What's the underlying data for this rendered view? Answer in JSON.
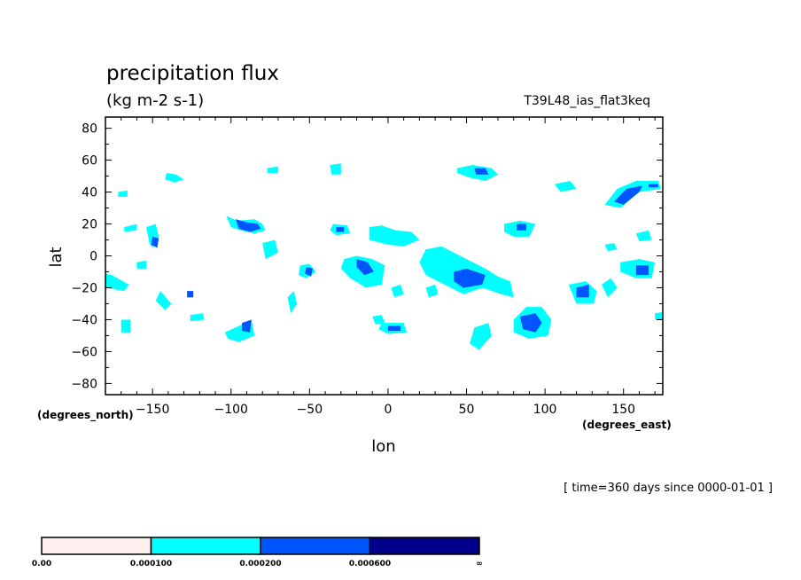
{
  "chart_data": {
    "type": "heatmap",
    "title": "precipitation flux",
    "subtitle": "(kg m-2 s-1)",
    "run_name": "T39L48_ias_flat3keq",
    "xlabel": "lon",
    "ylabel": "lat",
    "x_units": "(degrees_east)",
    "y_units": "(degrees_north)",
    "time_label": "[ time=360 days since 0000-01-01 ]",
    "xlim": [
      -180,
      175
    ],
    "ylim": [
      -87,
      87
    ],
    "x_ticks": [
      -150,
      -100,
      -50,
      0,
      50,
      100,
      150
    ],
    "y_ticks": [
      80,
      60,
      40,
      20,
      0,
      -20,
      -40,
      -60,
      -80
    ],
    "grid": false,
    "colorbar": {
      "placement": "bottom",
      "levels": [
        "0.00",
        "0.000100",
        "0.000200",
        "0.000600",
        "∞"
      ],
      "colors": [
        "#fff0f0",
        "#00ffff",
        "#0055ff",
        "#00008b"
      ]
    },
    "regions": [
      {
        "level": 1,
        "points": [
          [
            -176,
            -12
          ],
          [
            -165,
            -18
          ],
          [
            -168,
            -22
          ],
          [
            -180,
            -20
          ],
          [
            -180,
            -11
          ]
        ]
      },
      {
        "level": 1,
        "points": [
          [
            -154,
            18
          ],
          [
            -148,
            20
          ],
          [
            -146,
            12
          ],
          [
            -150,
            5
          ],
          [
            -152,
            8
          ]
        ]
      },
      {
        "level": 1,
        "points": [
          [
            -145,
            -22
          ],
          [
            -138,
            -30
          ],
          [
            -142,
            -34
          ],
          [
            -148,
            -28
          ]
        ]
      },
      {
        "level": 1,
        "points": [
          [
            -141,
            52
          ],
          [
            -135,
            51
          ],
          [
            -130,
            48
          ],
          [
            -136,
            46
          ],
          [
            -142,
            48
          ]
        ]
      },
      {
        "level": 1,
        "points": [
          [
            -103,
            25
          ],
          [
            -96,
            22
          ],
          [
            -85,
            23
          ],
          [
            -80,
            20
          ],
          [
            -78,
            16
          ],
          [
            -85,
            14
          ],
          [
            -94,
            16
          ],
          [
            -100,
            18
          ]
        ]
      },
      {
        "level": 1,
        "points": [
          [
            -104,
            -48
          ],
          [
            -95,
            -44
          ],
          [
            -87,
            -40
          ],
          [
            -85,
            -50
          ],
          [
            -95,
            -54
          ],
          [
            -102,
            -52
          ]
        ]
      },
      {
        "level": 1,
        "points": [
          [
            -56,
            -6
          ],
          [
            -50,
            -5
          ],
          [
            -46,
            -10
          ],
          [
            -52,
            -14
          ],
          [
            -57,
            -12
          ]
        ]
      },
      {
        "level": 1,
        "points": [
          [
            -35,
            20
          ],
          [
            -26,
            19
          ],
          [
            -24,
            14
          ],
          [
            -33,
            13
          ],
          [
            -37,
            16
          ]
        ]
      },
      {
        "level": 1,
        "points": [
          [
            -28,
            -2
          ],
          [
            -20,
            0
          ],
          [
            -10,
            -2
          ],
          [
            -2,
            -6
          ],
          [
            -4,
            -18
          ],
          [
            -14,
            -20
          ],
          [
            -24,
            -14
          ],
          [
            -30,
            -8
          ]
        ]
      },
      {
        "level": 1,
        "points": [
          [
            -12,
            18
          ],
          [
            -4,
            19
          ],
          [
            5,
            16
          ],
          [
            15,
            15
          ],
          [
            20,
            10
          ],
          [
            10,
            6
          ],
          [
            0,
            7
          ],
          [
            -12,
            10
          ]
        ]
      },
      {
        "level": 1,
        "points": [
          [
            -4,
            -42
          ],
          [
            10,
            -42
          ],
          [
            12,
            -48
          ],
          [
            0,
            -49
          ],
          [
            -6,
            -46
          ]
        ]
      },
      {
        "level": 1,
        "points": [
          [
            24,
            4
          ],
          [
            34,
            6
          ],
          [
            42,
            2
          ],
          [
            50,
            -2
          ],
          [
            62,
            -8
          ],
          [
            70,
            -13
          ],
          [
            78,
            -16
          ],
          [
            80,
            -26
          ],
          [
            72,
            -24
          ],
          [
            60,
            -20
          ],
          [
            48,
            -24
          ],
          [
            36,
            -18
          ],
          [
            24,
            -12
          ],
          [
            20,
            -4
          ]
        ]
      },
      {
        "level": 1,
        "points": [
          [
            44,
            55
          ],
          [
            54,
            57
          ],
          [
            66,
            55
          ],
          [
            70,
            51
          ],
          [
            62,
            47
          ],
          [
            52,
            49
          ],
          [
            44,
            52
          ]
        ]
      },
      {
        "level": 1,
        "points": [
          [
            55,
            -45
          ],
          [
            64,
            -42
          ],
          [
            66,
            -50
          ],
          [
            58,
            -59
          ],
          [
            52,
            -55
          ]
        ]
      },
      {
        "level": 1,
        "points": [
          [
            74,
            20
          ],
          [
            84,
            22
          ],
          [
            94,
            20
          ],
          [
            90,
            12
          ],
          [
            80,
            12
          ],
          [
            74,
            15
          ]
        ]
      },
      {
        "level": 1,
        "points": [
          [
            80,
            -40
          ],
          [
            88,
            -32
          ],
          [
            98,
            -32
          ],
          [
            104,
            -40
          ],
          [
            102,
            -50
          ],
          [
            90,
            -52
          ],
          [
            80,
            -48
          ]
        ]
      },
      {
        "level": 1,
        "points": [
          [
            115,
            -18
          ],
          [
            126,
            -16
          ],
          [
            133,
            -22
          ],
          [
            131,
            -30
          ],
          [
            120,
            -30
          ]
        ]
      },
      {
        "level": 1,
        "points": [
          [
            138,
            32
          ],
          [
            146,
            42
          ],
          [
            158,
            47
          ],
          [
            172,
            47
          ],
          [
            174,
            42
          ],
          [
            160,
            40
          ],
          [
            148,
            30
          ]
        ]
      },
      {
        "level": 1,
        "points": [
          [
            148,
            -4
          ],
          [
            160,
            -2
          ],
          [
            170,
            -4
          ],
          [
            168,
            -14
          ],
          [
            158,
            -14
          ],
          [
            148,
            -10
          ]
        ]
      },
      {
        "level": 1,
        "points": [
          [
            106,
            45
          ],
          [
            116,
            47
          ],
          [
            120,
            42
          ],
          [
            110,
            40
          ]
        ]
      },
      {
        "level": 1,
        "points": [
          [
            -170,
            -40
          ],
          [
            -164,
            -40
          ],
          [
            -164,
            -48
          ],
          [
            -170,
            -48
          ]
        ]
      },
      {
        "level": 1,
        "points": [
          [
            -126,
            -37
          ],
          [
            -118,
            -36
          ],
          [
            -117,
            -40
          ],
          [
            -126,
            -41
          ]
        ]
      },
      {
        "level": 1,
        "points": [
          [
            -37,
            57
          ],
          [
            -30,
            58
          ],
          [
            -30,
            51
          ],
          [
            -36,
            51
          ]
        ]
      },
      {
        "level": 1,
        "points": [
          [
            -77,
            55
          ],
          [
            -70,
            56
          ],
          [
            -70,
            52
          ],
          [
            -77,
            52
          ]
        ]
      },
      {
        "level": 1,
        "points": [
          [
            -172,
            40
          ],
          [
            -166,
            41
          ],
          [
            -166,
            37
          ],
          [
            -172,
            37
          ]
        ]
      },
      {
        "level": 1,
        "points": [
          [
            -160,
            -4
          ],
          [
            -154,
            -3
          ],
          [
            -154,
            -8
          ],
          [
            -160,
            -8
          ]
        ]
      },
      {
        "level": 1,
        "points": [
          [
            -80,
            8
          ],
          [
            -72,
            10
          ],
          [
            -70,
            2
          ],
          [
            -78,
            -2
          ]
        ]
      },
      {
        "level": 1,
        "points": [
          [
            -64,
            -26
          ],
          [
            -60,
            -22
          ],
          [
            -58,
            -30
          ],
          [
            -62,
            -36
          ]
        ]
      },
      {
        "level": 1,
        "points": [
          [
            136,
            -18
          ],
          [
            142,
            -14
          ],
          [
            146,
            -20
          ],
          [
            140,
            -26
          ]
        ]
      },
      {
        "level": 1,
        "points": [
          [
            158,
            14
          ],
          [
            166,
            16
          ],
          [
            168,
            10
          ],
          [
            160,
            9
          ]
        ]
      },
      {
        "level": 1,
        "points": [
          [
            138,
            7
          ],
          [
            144,
            8
          ],
          [
            146,
            4
          ],
          [
            140,
            3
          ]
        ]
      },
      {
        "level": 1,
        "points": [
          [
            -168,
            18
          ],
          [
            -160,
            20
          ],
          [
            -160,
            16
          ],
          [
            -168,
            15
          ]
        ]
      },
      {
        "level": 1,
        "points": [
          [
            24,
            -20
          ],
          [
            30,
            -18
          ],
          [
            32,
            -24
          ],
          [
            26,
            -26
          ]
        ]
      },
      {
        "level": 1,
        "points": [
          [
            -10,
            -38
          ],
          [
            -4,
            -37
          ],
          [
            -2,
            -42
          ],
          [
            -8,
            -43
          ]
        ]
      },
      {
        "level": 1,
        "points": [
          [
            170,
            -36
          ],
          [
            176,
            -35
          ],
          [
            176,
            -40
          ],
          [
            170,
            -40
          ]
        ]
      },
      {
        "level": 1,
        "points": [
          [
            2,
            -20
          ],
          [
            8,
            -18
          ],
          [
            10,
            -24
          ],
          [
            4,
            -26
          ]
        ]
      },
      {
        "level": 2,
        "points": [
          [
            -97,
            23
          ],
          [
            -90,
            21
          ],
          [
            -83,
            20
          ],
          [
            -81,
            17
          ],
          [
            -88,
            15
          ],
          [
            -95,
            17
          ]
        ]
      },
      {
        "level": 2,
        "points": [
          [
            -150,
            12
          ],
          [
            -146,
            11
          ],
          [
            -147,
            5
          ],
          [
            -151,
            7
          ]
        ]
      },
      {
        "level": 2,
        "points": [
          [
            -93,
            -42
          ],
          [
            -87,
            -40
          ],
          [
            -88,
            -48
          ],
          [
            -93,
            -47
          ]
        ]
      },
      {
        "level": 2,
        "points": [
          [
            -52,
            -7
          ],
          [
            -48,
            -8
          ],
          [
            -49,
            -13
          ],
          [
            -53,
            -11
          ]
        ]
      },
      {
        "level": 2,
        "points": [
          [
            -20,
            -2
          ],
          [
            -13,
            -4
          ],
          [
            -9,
            -10
          ],
          [
            -15,
            -12
          ],
          [
            -20,
            -7
          ]
        ]
      },
      {
        "level": 2,
        "points": [
          [
            0,
            -44
          ],
          [
            8,
            -44
          ],
          [
            8,
            -47
          ],
          [
            0,
            -47
          ]
        ]
      },
      {
        "level": 2,
        "points": [
          [
            42,
            -10
          ],
          [
            50,
            -8
          ],
          [
            62,
            -12
          ],
          [
            60,
            -18
          ],
          [
            48,
            -20
          ],
          [
            42,
            -16
          ]
        ]
      },
      {
        "level": 2,
        "points": [
          [
            55,
            55
          ],
          [
            62,
            55
          ],
          [
            64,
            51
          ],
          [
            56,
            51
          ]
        ]
      },
      {
        "level": 2,
        "points": [
          [
            84,
            -38
          ],
          [
            94,
            -36
          ],
          [
            98,
            -42
          ],
          [
            94,
            -48
          ],
          [
            86,
            -46
          ]
        ]
      },
      {
        "level": 2,
        "points": [
          [
            120,
            -20
          ],
          [
            128,
            -18
          ],
          [
            128,
            -26
          ],
          [
            120,
            -26
          ]
        ]
      },
      {
        "level": 2,
        "points": [
          [
            144,
            34
          ],
          [
            152,
            42
          ],
          [
            162,
            44
          ],
          [
            160,
            40
          ],
          [
            150,
            32
          ]
        ]
      },
      {
        "level": 2,
        "points": [
          [
            158,
            -6
          ],
          [
            166,
            -6
          ],
          [
            166,
            -12
          ],
          [
            158,
            -12
          ]
        ]
      },
      {
        "level": 2,
        "points": [
          [
            82,
            20
          ],
          [
            88,
            20
          ],
          [
            88,
            16
          ],
          [
            82,
            16
          ]
        ]
      },
      {
        "level": 2,
        "points": [
          [
            -33,
            18
          ],
          [
            -28,
            18
          ],
          [
            -28,
            15
          ],
          [
            -33,
            15
          ]
        ]
      },
      {
        "level": 2,
        "points": [
          [
            -128,
            -22
          ],
          [
            -124,
            -22
          ],
          [
            -124,
            -26
          ],
          [
            -128,
            -26
          ]
        ]
      },
      {
        "level": 2,
        "points": [
          [
            166,
            45
          ],
          [
            172,
            45
          ],
          [
            172,
            43
          ],
          [
            166,
            43
          ]
        ]
      }
    ]
  }
}
